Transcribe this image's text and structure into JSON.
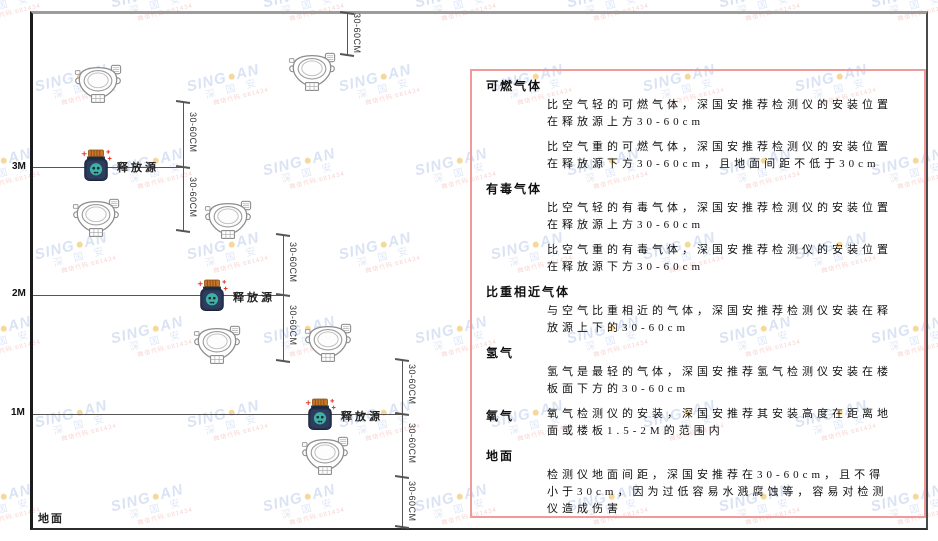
{
  "diagram": {
    "height_labels": [
      "3M",
      "2M",
      "1M"
    ],
    "ground_label": "地面",
    "release_source_label": "释放源",
    "dimension_label": "30-60CM"
  },
  "panel": {
    "border_color": "#f09a9a",
    "sections": [
      {
        "heading": "可燃气体",
        "paragraphs": [
          "比空气轻的可燃气体，深国安推荐检测仪的安装位置在释放源上方30-60cm",
          "比空气重的可燃气体，深国安推荐检测仪的安装位置在释放源下方30-60cm，且地面间距不低于30cm"
        ]
      },
      {
        "heading": "有毒气体",
        "paragraphs": [
          "比空气轻的有毒气体，深国安推荐检测仪的安装位置在释放源上方30-60cm",
          "比空气重的有毒气体，深国安推荐检测仪的安装位置在释放源下方30-60cm"
        ]
      },
      {
        "heading": "比重相近气体",
        "paragraphs": [
          "与空气比重相近的气体，深国安推荐检测仪安装在释放源上下的30-60cm"
        ]
      },
      {
        "heading": "氢气",
        "paragraphs": [
          "氢气是最轻的气体，深国安推荐氢气检测仪安装在楼板面下方的30-60cm"
        ]
      },
      {
        "heading": "氧气",
        "paragraphs": [
          "氧气检测仪的安装，深国安推荐其安装高度在距离地面或楼板1.5-2M的范围内"
        ]
      },
      {
        "heading": "地面",
        "paragraphs": [
          "检测仪地面间距，深国安推荐在30-60cm，且不得小于30cm，因为过低容易水溅腐蚀等，容易对检测仪造成伤害"
        ]
      }
    ]
  },
  "watermark": {
    "brand": "SING",
    "brand2": "AN",
    "subtext": "深 国 安",
    "code": "微信代码:681434",
    "brand_color": "#b7c8ea",
    "dot_color": "#efb23a"
  }
}
